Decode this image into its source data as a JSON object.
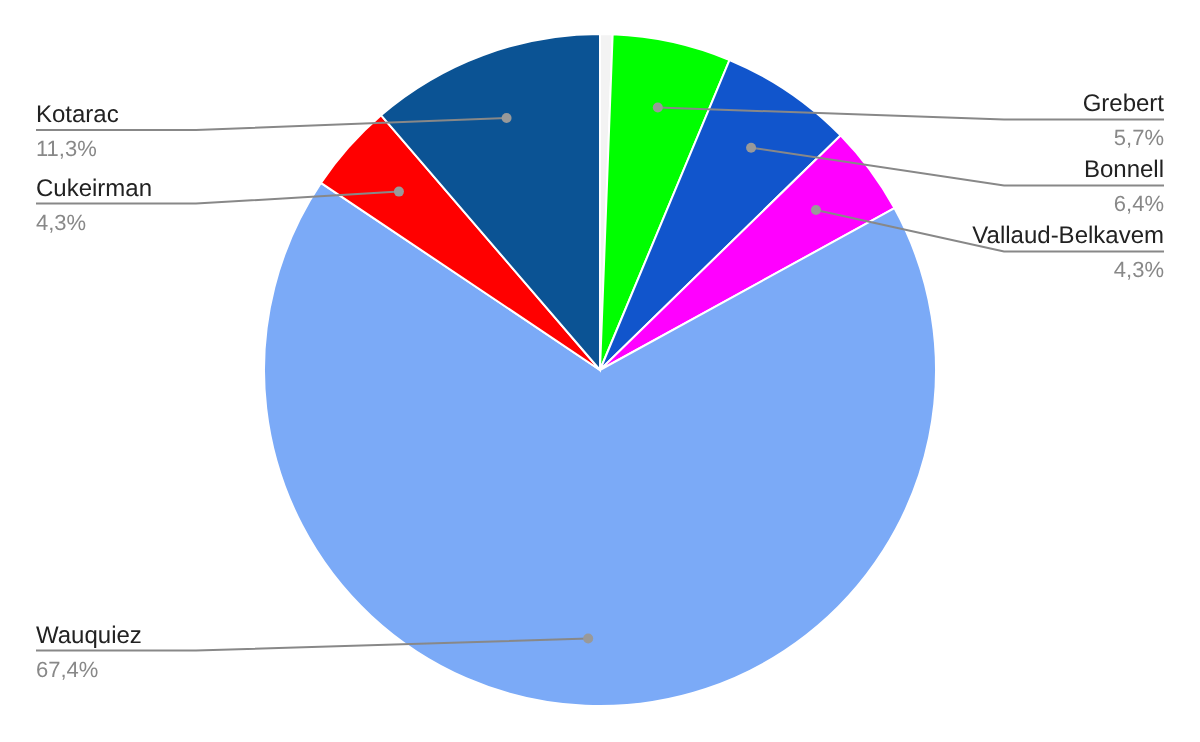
{
  "chart_data": {
    "type": "pie",
    "categories": [
      null,
      "Grebert",
      "Bonnell",
      "Vallaud-Belkavem",
      "Wauquiez",
      "Cukeirman",
      "Kotarac"
    ],
    "values": [
      0.6,
      5.7,
      6.4,
      4.3,
      67.4,
      4.3,
      11.3
    ],
    "value_labels": [
      null,
      "5,7%",
      "6,4%",
      "4,3%",
      "67,4%",
      "4,3%",
      "11,3%"
    ],
    "colors": [
      "#f3f3f3",
      "#00ff00",
      "#1155cc",
      "#ff00ff",
      "#7baaf7",
      "#ff0000",
      "#0b5394"
    ],
    "legend": false
  }
}
